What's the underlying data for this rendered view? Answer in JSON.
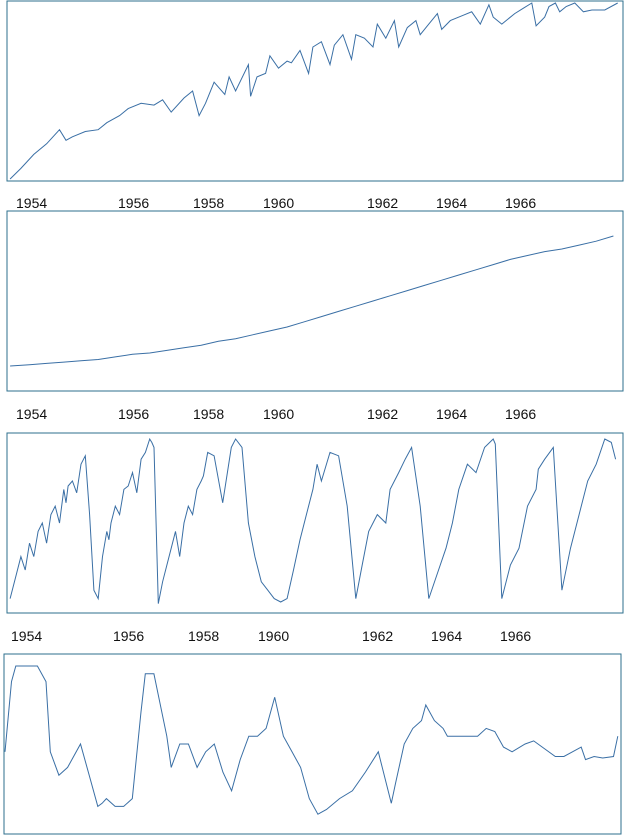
{
  "colors": {
    "line": "#3a6fa5",
    "frame": "#2d6f8e"
  },
  "chart_data": [
    {
      "type": "line",
      "xlabel": "",
      "ylabel": "",
      "grid": false,
      "legend": "none",
      "xlim": [
        1953.7,
        1968.0
      ],
      "ylim": [
        0,
        1
      ],
      "x_ticks": [
        "1954",
        "1956",
        "1958",
        "1960",
        "1962",
        "1964",
        "1966"
      ],
      "series": [
        {
          "x": [
            1953.75,
            1954.0,
            1954.3,
            1954.6,
            1954.9,
            1955.05,
            1955.2,
            1955.5,
            1955.8,
            1956.0,
            1956.3,
            1956.5,
            1956.8,
            1957.1,
            1957.3,
            1957.5,
            1957.8,
            1958.0,
            1958.15,
            1958.3,
            1958.5,
            1958.75,
            1958.85,
            1959.0,
            1959.3,
            1959.35,
            1959.5,
            1959.7,
            1959.8,
            1960.0,
            1960.2,
            1960.3,
            1960.5,
            1960.7,
            1960.8,
            1961.0,
            1961.2,
            1961.3,
            1961.5,
            1961.7,
            1961.8,
            1962.0,
            1962.2,
            1962.3,
            1962.5,
            1962.7,
            1962.8,
            1963.0,
            1963.2,
            1963.3,
            1963.5,
            1963.7,
            1963.8,
            1964.0,
            1964.3,
            1964.5,
            1964.7,
            1964.9,
            1965.0,
            1965.1,
            1965.2,
            1965.5,
            1965.7,
            1965.9,
            1966.0,
            1966.2,
            1966.3,
            1966.45,
            1966.55,
            1966.7,
            1966.9,
            1967.1,
            1967.3,
            1967.6,
            1967.9
          ],
          "y": [
            0.0,
            0.06,
            0.14,
            0.2,
            0.28,
            0.22,
            0.24,
            0.27,
            0.28,
            0.32,
            0.36,
            0.4,
            0.43,
            0.42,
            0.45,
            0.38,
            0.46,
            0.5,
            0.36,
            0.43,
            0.55,
            0.48,
            0.58,
            0.5,
            0.65,
            0.47,
            0.58,
            0.6,
            0.7,
            0.63,
            0.67,
            0.66,
            0.73,
            0.6,
            0.75,
            0.78,
            0.65,
            0.76,
            0.82,
            0.68,
            0.82,
            0.8,
            0.75,
            0.88,
            0.8,
            0.9,
            0.75,
            0.86,
            0.9,
            0.82,
            0.88,
            0.94,
            0.85,
            0.9,
            0.93,
            0.95,
            0.88,
            0.99,
            0.92,
            0.9,
            0.88,
            0.94,
            0.97,
            1.0,
            0.87,
            0.92,
            0.98,
            1.0,
            0.95,
            0.98,
            1.0,
            0.95,
            0.96,
            0.96,
            1.0
          ]
        }
      ]
    },
    {
      "type": "line",
      "xlabel": "",
      "ylabel": "",
      "grid": false,
      "legend": "none",
      "xlim": [
        1953.7,
        1968.0
      ],
      "ylim": [
        0,
        1
      ],
      "x_ticks": [
        "1954",
        "1956",
        "1958",
        "1960",
        "1962",
        "1964",
        "1966"
      ],
      "series": [
        {
          "x": [
            1953.75,
            1954.2,
            1954.6,
            1955.0,
            1955.4,
            1955.8,
            1956.2,
            1956.6,
            1957.0,
            1957.4,
            1957.8,
            1958.2,
            1958.6,
            1959.0,
            1959.4,
            1959.8,
            1960.2,
            1960.6,
            1961.0,
            1961.4,
            1961.8,
            1962.2,
            1962.6,
            1963.0,
            1963.4,
            1963.8,
            1964.2,
            1964.6,
            1965.0,
            1965.4,
            1965.8,
            1966.2,
            1966.6,
            1967.0,
            1967.4,
            1967.8
          ],
          "y": [
            0.0,
            0.01,
            0.02,
            0.03,
            0.04,
            0.05,
            0.07,
            0.09,
            0.1,
            0.12,
            0.14,
            0.16,
            0.19,
            0.21,
            0.24,
            0.27,
            0.3,
            0.34,
            0.38,
            0.42,
            0.46,
            0.5,
            0.54,
            0.58,
            0.62,
            0.66,
            0.7,
            0.74,
            0.78,
            0.82,
            0.85,
            0.88,
            0.9,
            0.93,
            0.96,
            1.0
          ]
        }
      ]
    },
    {
      "type": "line",
      "xlabel": "",
      "ylabel": "",
      "grid": false,
      "legend": "none",
      "xlim": [
        1953.7,
        1968.0
      ],
      "ylim": [
        0,
        1
      ],
      "x_ticks": [
        "1954",
        "1956",
        "1958",
        "1960",
        "1962",
        "1964",
        "1966"
      ],
      "series": [
        {
          "x": [
            1953.75,
            1953.9,
            1954.0,
            1954.1,
            1954.2,
            1954.3,
            1954.4,
            1954.5,
            1954.6,
            1954.7,
            1954.8,
            1954.9,
            1955.0,
            1955.05,
            1955.1,
            1955.2,
            1955.3,
            1955.4,
            1955.5,
            1955.6,
            1955.7,
            1955.8,
            1955.9,
            1956.0,
            1956.05,
            1956.1,
            1956.2,
            1956.3,
            1956.4,
            1956.5,
            1956.6,
            1956.7,
            1956.8,
            1956.9,
            1957.0,
            1957.05,
            1957.1,
            1957.2,
            1957.3,
            1957.4,
            1957.5,
            1957.6,
            1957.7,
            1957.8,
            1957.9,
            1958.0,
            1958.1,
            1958.2,
            1958.25,
            1958.35,
            1958.5,
            1958.7,
            1958.9,
            1959.0,
            1959.15,
            1959.3,
            1959.45,
            1959.6,
            1959.75,
            1959.9,
            1960.05,
            1960.2,
            1960.35,
            1960.5,
            1960.65,
            1960.8,
            1960.9,
            1961.0,
            1961.2,
            1961.4,
            1961.6,
            1961.8,
            1961.95,
            1962.1,
            1962.3,
            1962.5,
            1962.6,
            1962.7,
            1962.8,
            1962.95,
            1963.1,
            1963.3,
            1963.5,
            1963.7,
            1963.9,
            1964.0,
            1964.05,
            1964.2,
            1964.4,
            1964.6,
            1964.8,
            1965.0,
            1965.05,
            1965.2,
            1965.4,
            1965.6,
            1965.8,
            1966.0,
            1966.05,
            1966.2,
            1966.4,
            1966.6,
            1966.8,
            1967.0,
            1967.2,
            1967.4,
            1967.6,
            1967.75,
            1967.85
          ],
          "y": [
            0.05,
            0.2,
            0.3,
            0.22,
            0.38,
            0.3,
            0.45,
            0.5,
            0.38,
            0.55,
            0.6,
            0.5,
            0.7,
            0.62,
            0.72,
            0.75,
            0.68,
            0.85,
            0.9,
            0.55,
            0.1,
            0.05,
            0.3,
            0.45,
            0.4,
            0.5,
            0.6,
            0.55,
            0.7,
            0.72,
            0.8,
            0.68,
            0.88,
            0.92,
            1.0,
            0.98,
            0.95,
            0.02,
            0.15,
            0.25,
            0.35,
            0.45,
            0.3,
            0.5,
            0.6,
            0.55,
            0.7,
            0.75,
            0.78,
            0.92,
            0.9,
            0.62,
            0.95,
            1.0,
            0.95,
            0.5,
            0.3,
            0.15,
            0.1,
            0.05,
            0.03,
            0.05,
            0.22,
            0.4,
            0.55,
            0.7,
            0.85,
            0.75,
            0.92,
            0.9,
            0.6,
            0.05,
            0.25,
            0.45,
            0.55,
            0.5,
            0.7,
            0.75,
            0.8,
            0.88,
            0.95,
            0.6,
            0.05,
            0.2,
            0.35,
            0.45,
            0.5,
            0.7,
            0.85,
            0.8,
            0.95,
            1.0,
            0.97,
            0.05,
            0.25,
            0.35,
            0.6,
            0.7,
            0.82,
            0.88,
            0.95,
            0.1,
            0.35,
            0.55,
            0.75,
            0.85,
            1.0,
            0.98,
            0.88
          ]
        }
      ]
    },
    {
      "type": "line",
      "xlabel": "",
      "ylabel": "",
      "grid": false,
      "legend": "none",
      "xlim": [
        1953.75,
        1968.0
      ],
      "ylim": [
        0,
        1
      ],
      "x_ticks": [],
      "series": [
        {
          "x": [
            1953.75,
            1953.9,
            1954.0,
            1954.2,
            1954.5,
            1954.7,
            1954.8,
            1955.0,
            1955.2,
            1955.5,
            1955.7,
            1955.9,
            1956.0,
            1956.1,
            1956.3,
            1956.5,
            1956.7,
            1956.9,
            1957.0,
            1957.2,
            1957.5,
            1957.6,
            1957.8,
            1958.0,
            1958.2,
            1958.4,
            1958.6,
            1958.8,
            1959.0,
            1959.2,
            1959.4,
            1959.6,
            1959.8,
            1960.0,
            1960.2,
            1960.4,
            1960.6,
            1960.8,
            1961.0,
            1961.2,
            1961.5,
            1961.8,
            1962.1,
            1962.4,
            1962.7,
            1962.8,
            1963.0,
            1963.2,
            1963.4,
            1963.5,
            1963.7,
            1963.9,
            1964.0,
            1964.2,
            1964.4,
            1964.7,
            1964.9,
            1965.1,
            1965.3,
            1965.5,
            1965.8,
            1966.0,
            1966.2,
            1966.5,
            1966.7,
            1966.9,
            1967.1,
            1967.2,
            1967.4,
            1967.6,
            1967.85,
            1967.95
          ],
          "y": [
            0.45,
            0.9,
            1.0,
            1.0,
            1.0,
            0.9,
            0.45,
            0.3,
            0.35,
            0.5,
            0.3,
            0.1,
            0.12,
            0.15,
            0.1,
            0.1,
            0.15,
            0.7,
            0.95,
            0.95,
            0.55,
            0.35,
            0.5,
            0.5,
            0.35,
            0.45,
            0.5,
            0.32,
            0.2,
            0.4,
            0.55,
            0.55,
            0.6,
            0.8,
            0.55,
            0.45,
            0.35,
            0.15,
            0.05,
            0.08,
            0.15,
            0.2,
            0.32,
            0.45,
            0.12,
            0.25,
            0.5,
            0.6,
            0.65,
            0.75,
            0.65,
            0.6,
            0.55,
            0.55,
            0.55,
            0.55,
            0.6,
            0.58,
            0.48,
            0.45,
            0.5,
            0.52,
            0.48,
            0.42,
            0.42,
            0.45,
            0.48,
            0.4,
            0.42,
            0.41,
            0.42,
            0.55
          ]
        }
      ]
    }
  ]
}
